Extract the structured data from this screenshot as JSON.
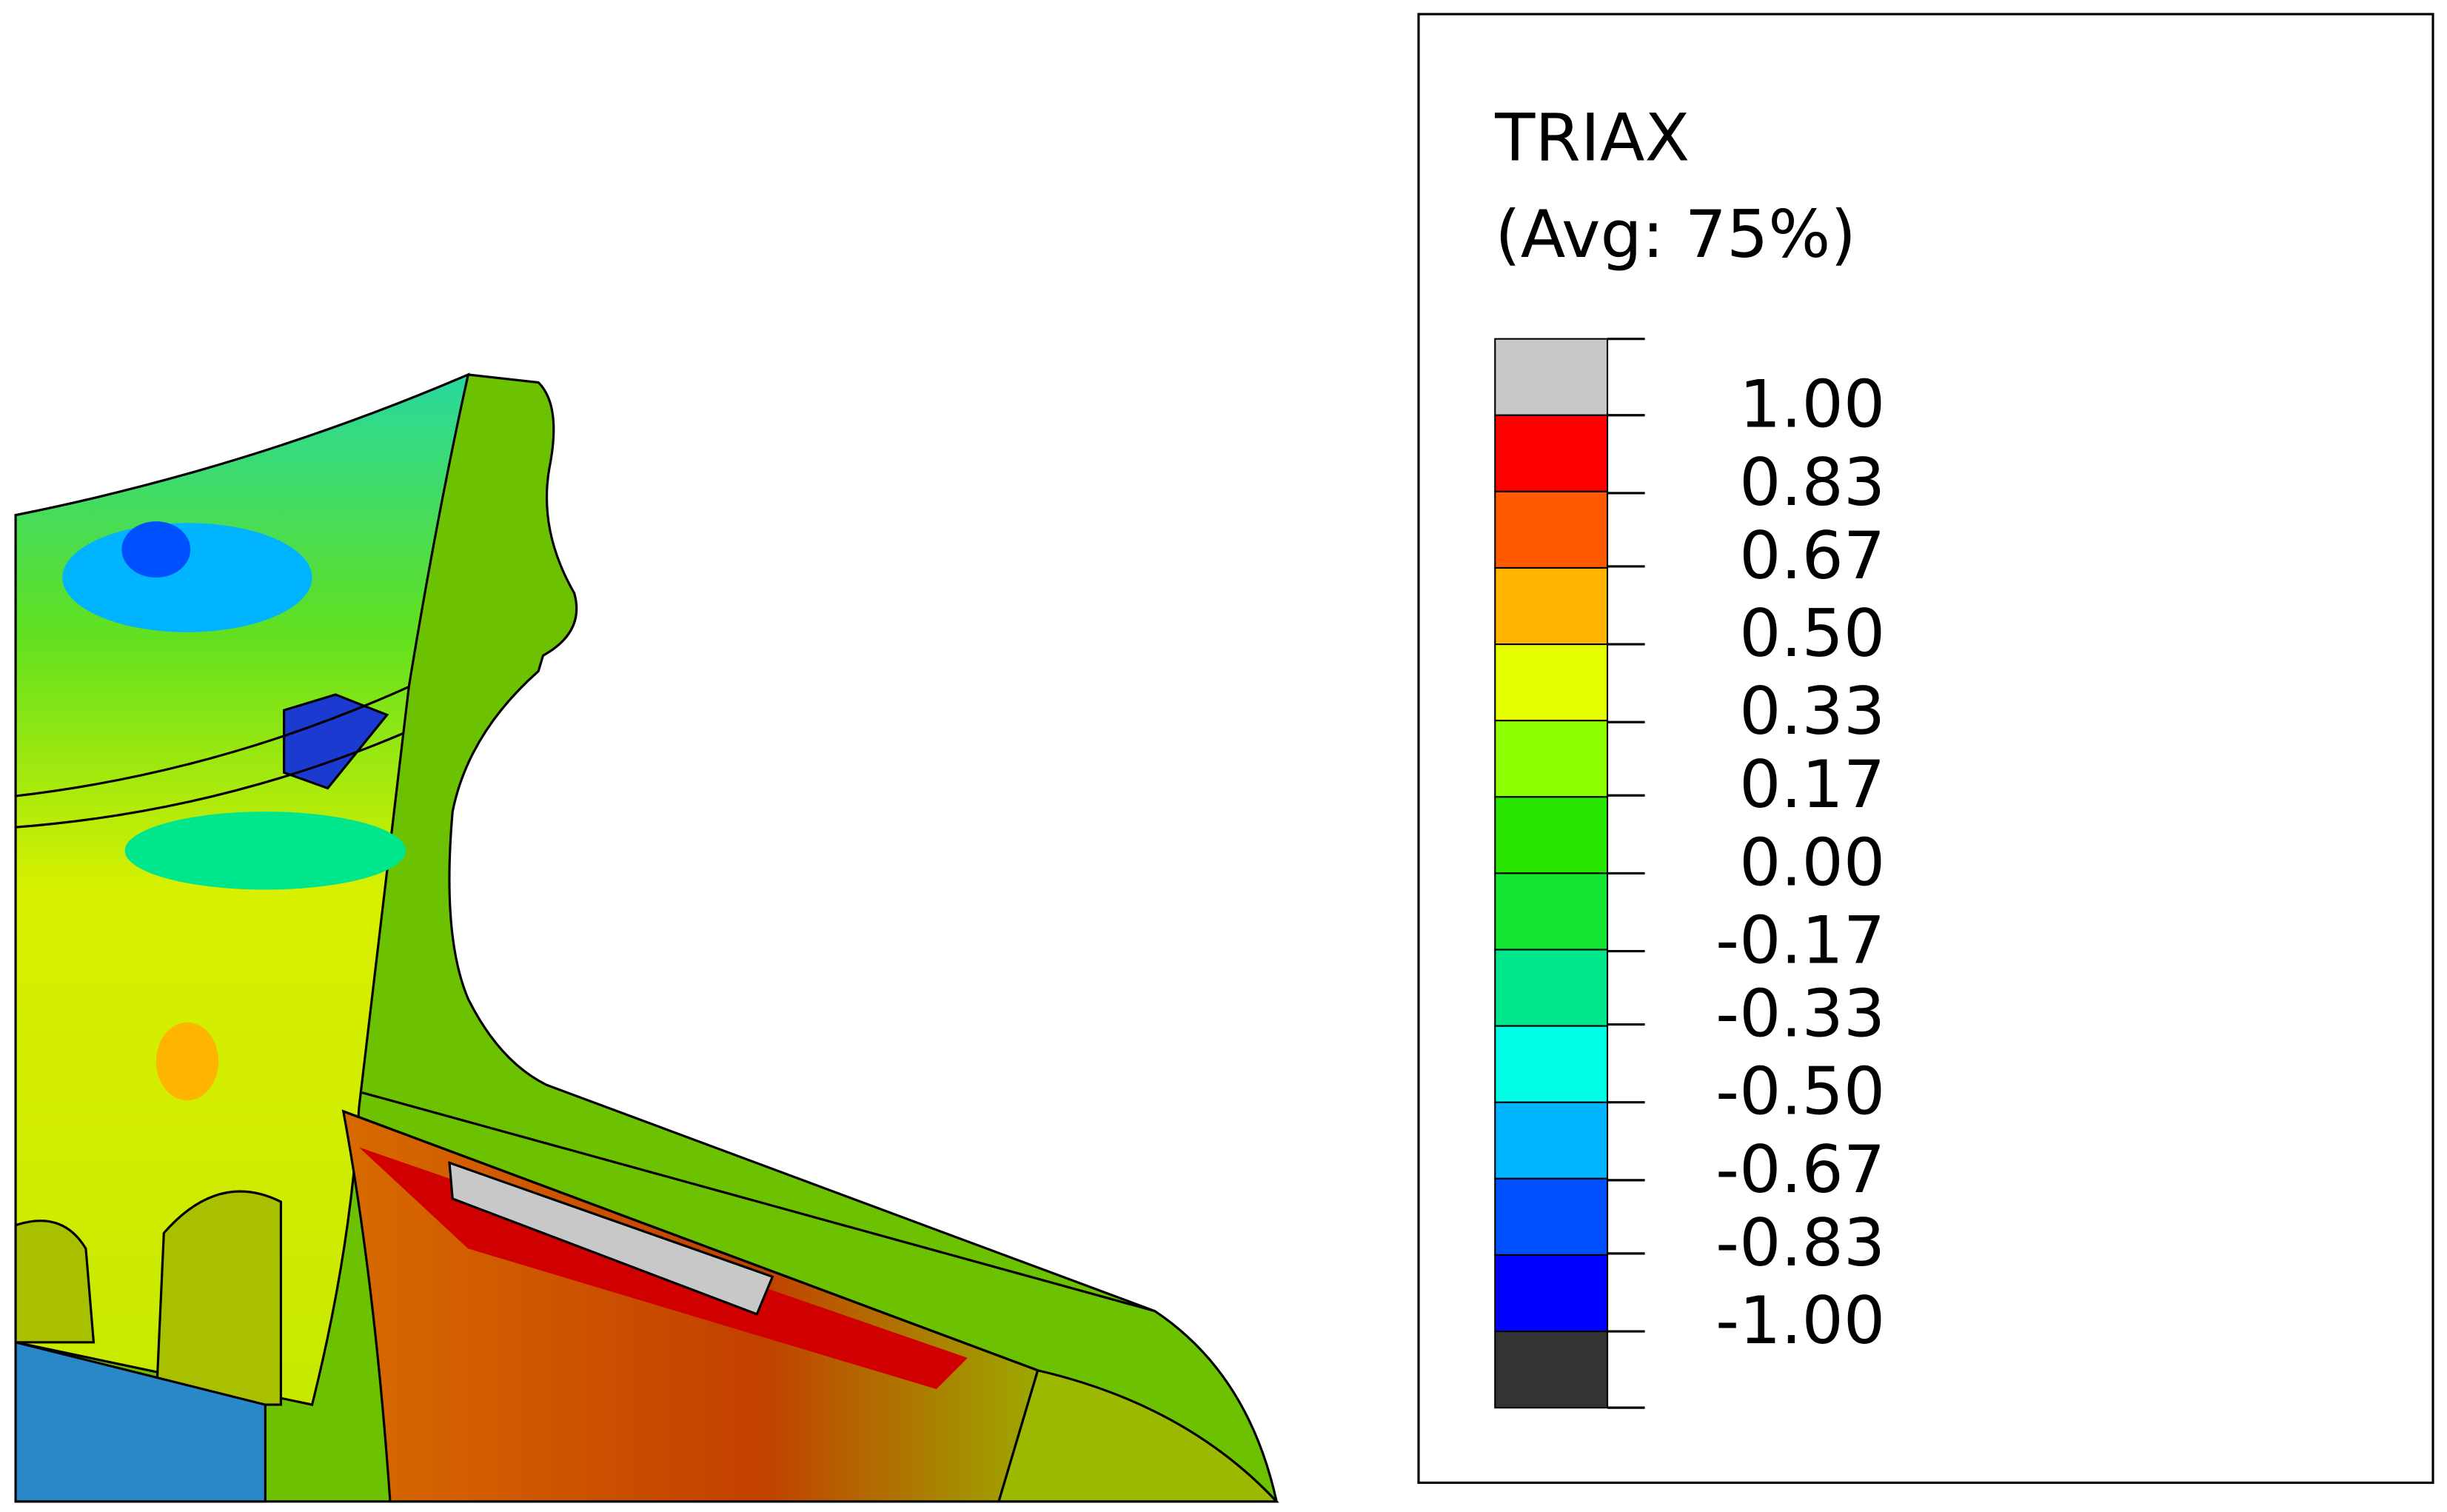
{
  "chart_data": {
    "type": "contour-legend",
    "title": "TRIAX",
    "subtitle": "(Avg: 75%)",
    "ticks": [
      {
        "value": 1,
        "label": "1.00"
      },
      {
        "value": 0.83,
        "label": "0.83"
      },
      {
        "value": 0.67,
        "label": "0.67"
      },
      {
        "value": 0.5,
        "label": "0.50"
      },
      {
        "value": 0.33,
        "label": "0.33"
      },
      {
        "value": 0.17,
        "label": "0.17"
      },
      {
        "value": 0,
        "label": "0.00"
      },
      {
        "value": -0.17,
        "label": "-0.17"
      },
      {
        "value": -0.33,
        "label": "-0.33"
      },
      {
        "value": -0.5,
        "label": "-0.50"
      },
      {
        "value": -0.67,
        "label": "-0.67"
      },
      {
        "value": -0.83,
        "label": "-0.83"
      },
      {
        "value": -1,
        "label": "-1.00"
      }
    ],
    "lim": [
      -1,
      1
    ],
    "colors": [
      "#c8c8c8",
      "#ff0000",
      "#ff5a00",
      "#ffb400",
      "#e6ff00",
      "#8cff00",
      "#28e600",
      "#14e632",
      "#00e68c",
      "#00ffe6",
      "#00b4ff",
      "#0050ff",
      "#0000ff",
      "#333333"
    ]
  }
}
